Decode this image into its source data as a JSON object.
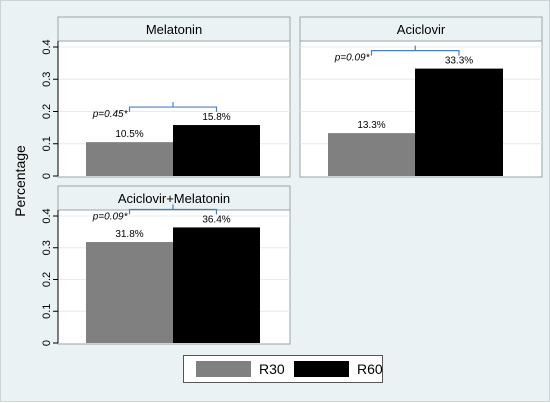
{
  "chart_data": [
    {
      "type": "bar",
      "title": "Melatonin",
      "categories": [
        "R30",
        "R60"
      ],
      "values": [
        0.105,
        0.158
      ],
      "data_labels": [
        "10.5%",
        "15.8%"
      ],
      "annotation": "p=0.45*",
      "ylabel": "Percentage",
      "ylim": [
        0,
        0.4
      ],
      "yticks": [
        "0",
        "0.1",
        "0.2",
        "0.3",
        "0.4"
      ]
    },
    {
      "type": "bar",
      "title": "Aciclovir",
      "categories": [
        "R30",
        "R60"
      ],
      "values": [
        0.133,
        0.333
      ],
      "data_labels": [
        "13.3%",
        "33.3%"
      ],
      "annotation": "p=0.09*",
      "ylim": [
        0,
        0.4
      ],
      "yticks": [
        "0",
        "0.1",
        "0.2",
        "0.3",
        "0.4"
      ]
    },
    {
      "type": "bar",
      "title": "Aciclovir+Melatonin",
      "categories": [
        "R30",
        "R60"
      ],
      "values": [
        0.318,
        0.364
      ],
      "data_labels": [
        "31.8%",
        "36.4%"
      ],
      "annotation": "p=0.09*",
      "ylim": [
        0,
        0.4
      ],
      "yticks": [
        "0",
        "0.1",
        "0.2",
        "0.3",
        "0.4"
      ]
    }
  ],
  "ylabel": "Percentage",
  "legend": [
    {
      "label": "R30",
      "color": "#808080"
    },
    {
      "label": "R60",
      "color": "#000000"
    }
  ],
  "colors": {
    "R30": "#808080",
    "R60": "#000000",
    "bracket": "#4a7fc1"
  }
}
